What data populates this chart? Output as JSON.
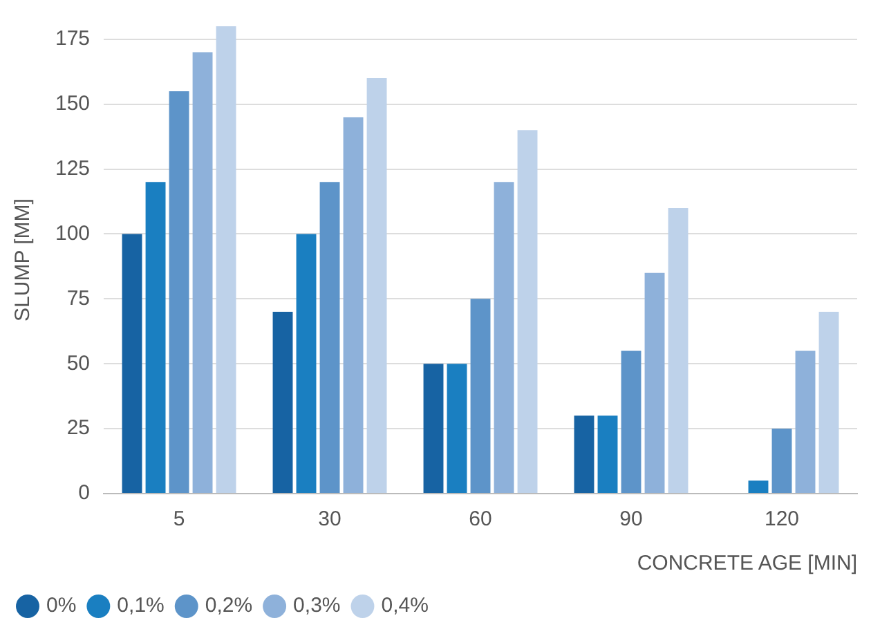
{
  "chart_data": {
    "type": "bar",
    "xlabel": "CONCRETE AGE [MIN]",
    "ylabel": "SLUMP [MM]",
    "categories": [
      "5",
      "30",
      "60",
      "90",
      "120"
    ],
    "series": [
      {
        "name": "0%",
        "color": "#1763a3",
        "values": [
          100,
          70,
          50,
          30,
          0
        ]
      },
      {
        "name": "0,1%",
        "color": "#1a7fc1",
        "values": [
          120,
          100,
          50,
          30,
          5
        ]
      },
      {
        "name": "0,2%",
        "color": "#5d94c9",
        "values": [
          155,
          120,
          75,
          55,
          25
        ]
      },
      {
        "name": "0,3%",
        "color": "#8eb1da",
        "values": [
          170,
          145,
          120,
          85,
          55
        ]
      },
      {
        "name": "0,4%",
        "color": "#bed2ea",
        "values": [
          180,
          160,
          140,
          110,
          70
        ]
      }
    ],
    "ylim": [
      0,
      180
    ],
    "yticks": [
      0,
      25,
      50,
      75,
      100,
      125,
      150,
      175
    ],
    "grid": "y",
    "legend": "bottom left"
  }
}
